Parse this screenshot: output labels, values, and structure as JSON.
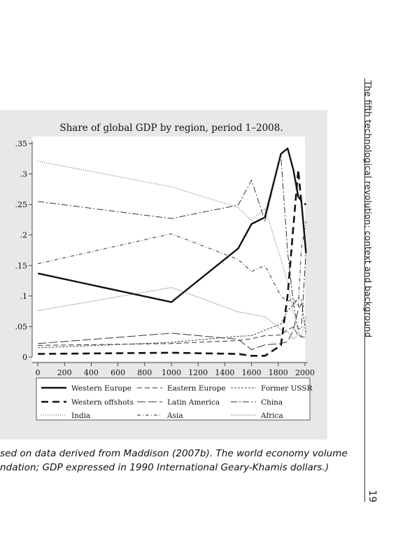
{
  "page": {
    "running_head": "The fifth technological revolution: context and background",
    "page_number": "19",
    "caption_lines": [
      "sed on data derived from Maddison (2007b). The world economy volume",
      "ndation; GDP expressed in 1990 International Geary-Khamis dollars.)"
    ]
  },
  "chart_data": {
    "type": "line",
    "title": "Share of global GDP by region, period 1–2008.",
    "xlabel": "",
    "ylabel": "",
    "xlim": [
      0,
      2000
    ],
    "ylim": [
      0,
      0.35
    ],
    "x_ticks": [
      0,
      200,
      400,
      600,
      800,
      1000,
      1200,
      1400,
      1600,
      1800,
      2000
    ],
    "x_tick_labels": [
      "0",
      "200",
      "400",
      "600",
      "800",
      "1000",
      "1200",
      "1400",
      "1600",
      "1800",
      "2000"
    ],
    "y_ticks": [
      0,
      0.05,
      0.1,
      0.15,
      0.2,
      0.25,
      0.3,
      0.35
    ],
    "y_tick_labels": [
      "0",
      ".05",
      ".1",
      ".15",
      ".2",
      ".25",
      ".3",
      ".35"
    ],
    "grid": false,
    "legend_position": "bottom",
    "series": [
      {
        "name": "Western Europe",
        "style": "solid",
        "width": 2.4,
        "color": "#111111",
        "x": [
          1,
          1000,
          1500,
          1600,
          1700,
          1820,
          1870,
          1913,
          1950,
          1973,
          2008
        ],
        "y": [
          0.137,
          0.09,
          0.178,
          0.218,
          0.229,
          0.333,
          0.342,
          0.307,
          0.263,
          0.256,
          0.17
        ]
      },
      {
        "name": "Western offshots",
        "style": "longdash",
        "width": 2.6,
        "color": "#111111",
        "x": [
          1,
          1000,
          1500,
          1600,
          1700,
          1820,
          1870,
          1913,
          1950,
          1973,
          2008
        ],
        "y": [
          0.005,
          0.007,
          0.005,
          0.002,
          0.002,
          0.019,
          0.101,
          0.214,
          0.307,
          0.253,
          0.25
        ]
      },
      {
        "name": "Eastern Europe",
        "style": "dash",
        "width": 1,
        "color": "#333333",
        "x": [
          1,
          1000,
          1500,
          1600,
          1700,
          1820,
          1870,
          1913,
          1950,
          1973,
          2008
        ],
        "y": [
          0.019,
          0.022,
          0.027,
          0.03,
          0.035,
          0.036,
          0.045,
          0.049,
          0.035,
          0.034,
          0.03
        ]
      },
      {
        "name": "Latin America",
        "style": "longdash2",
        "width": 1,
        "color": "#333333",
        "x": [
          1,
          1000,
          1500,
          1600,
          1700,
          1820,
          1870,
          1913,
          1950,
          1973,
          2008
        ],
        "y": [
          0.022,
          0.039,
          0.029,
          0.012,
          0.02,
          0.022,
          0.025,
          0.044,
          0.078,
          0.087,
          0.08
        ]
      },
      {
        "name": "Former USSR",
        "style": "shortdash",
        "width": 1,
        "color": "#444444",
        "x": [
          1,
          1000,
          1500,
          1600,
          1700,
          1820,
          1870,
          1913,
          1950,
          1973,
          2008
        ],
        "y": [
          0.015,
          0.024,
          0.034,
          0.035,
          0.044,
          0.054,
          0.076,
          0.086,
          0.096,
          0.094,
          0.037
        ]
      },
      {
        "name": "China",
        "style": "dashdot",
        "width": 1,
        "color": "#333333",
        "x": [
          1,
          1000,
          1500,
          1600,
          1700,
          1820,
          1870,
          1913,
          1950,
          1973,
          2008
        ],
        "y": [
          0.255,
          0.227,
          0.249,
          0.29,
          0.223,
          0.33,
          0.172,
          0.088,
          0.046,
          0.046,
          0.175
        ]
      },
      {
        "name": "India",
        "style": "dot",
        "width": 1,
        "color": "#555555",
        "x": [
          1,
          1000,
          1500,
          1600,
          1700,
          1820,
          1870,
          1913,
          1950,
          1973,
          2008
        ],
        "y": [
          0.321,
          0.279,
          0.245,
          0.224,
          0.244,
          0.16,
          0.122,
          0.075,
          0.042,
          0.031,
          0.067
        ]
      },
      {
        "name": "Asia",
        "style": "dashdot2",
        "width": 1,
        "color": "#333333",
        "x": [
          1,
          1000,
          1500,
          1600,
          1700,
          1820,
          1870,
          1913,
          1950,
          1973,
          2008
        ],
        "y": [
          0.153,
          0.202,
          0.16,
          0.14,
          0.15,
          0.1,
          0.09,
          0.097,
          0.082,
          0.178,
          0.222
        ]
      },
      {
        "name": "Africa",
        "style": "finedot",
        "width": 1,
        "color": "#555555",
        "x": [
          1,
          1000,
          1500,
          1600,
          1700,
          1820,
          1870,
          1913,
          1950,
          1973,
          2008
        ],
        "y": [
          0.076,
          0.114,
          0.074,
          0.07,
          0.066,
          0.045,
          0.041,
          0.029,
          0.038,
          0.034,
          0.032
        ]
      }
    ]
  }
}
